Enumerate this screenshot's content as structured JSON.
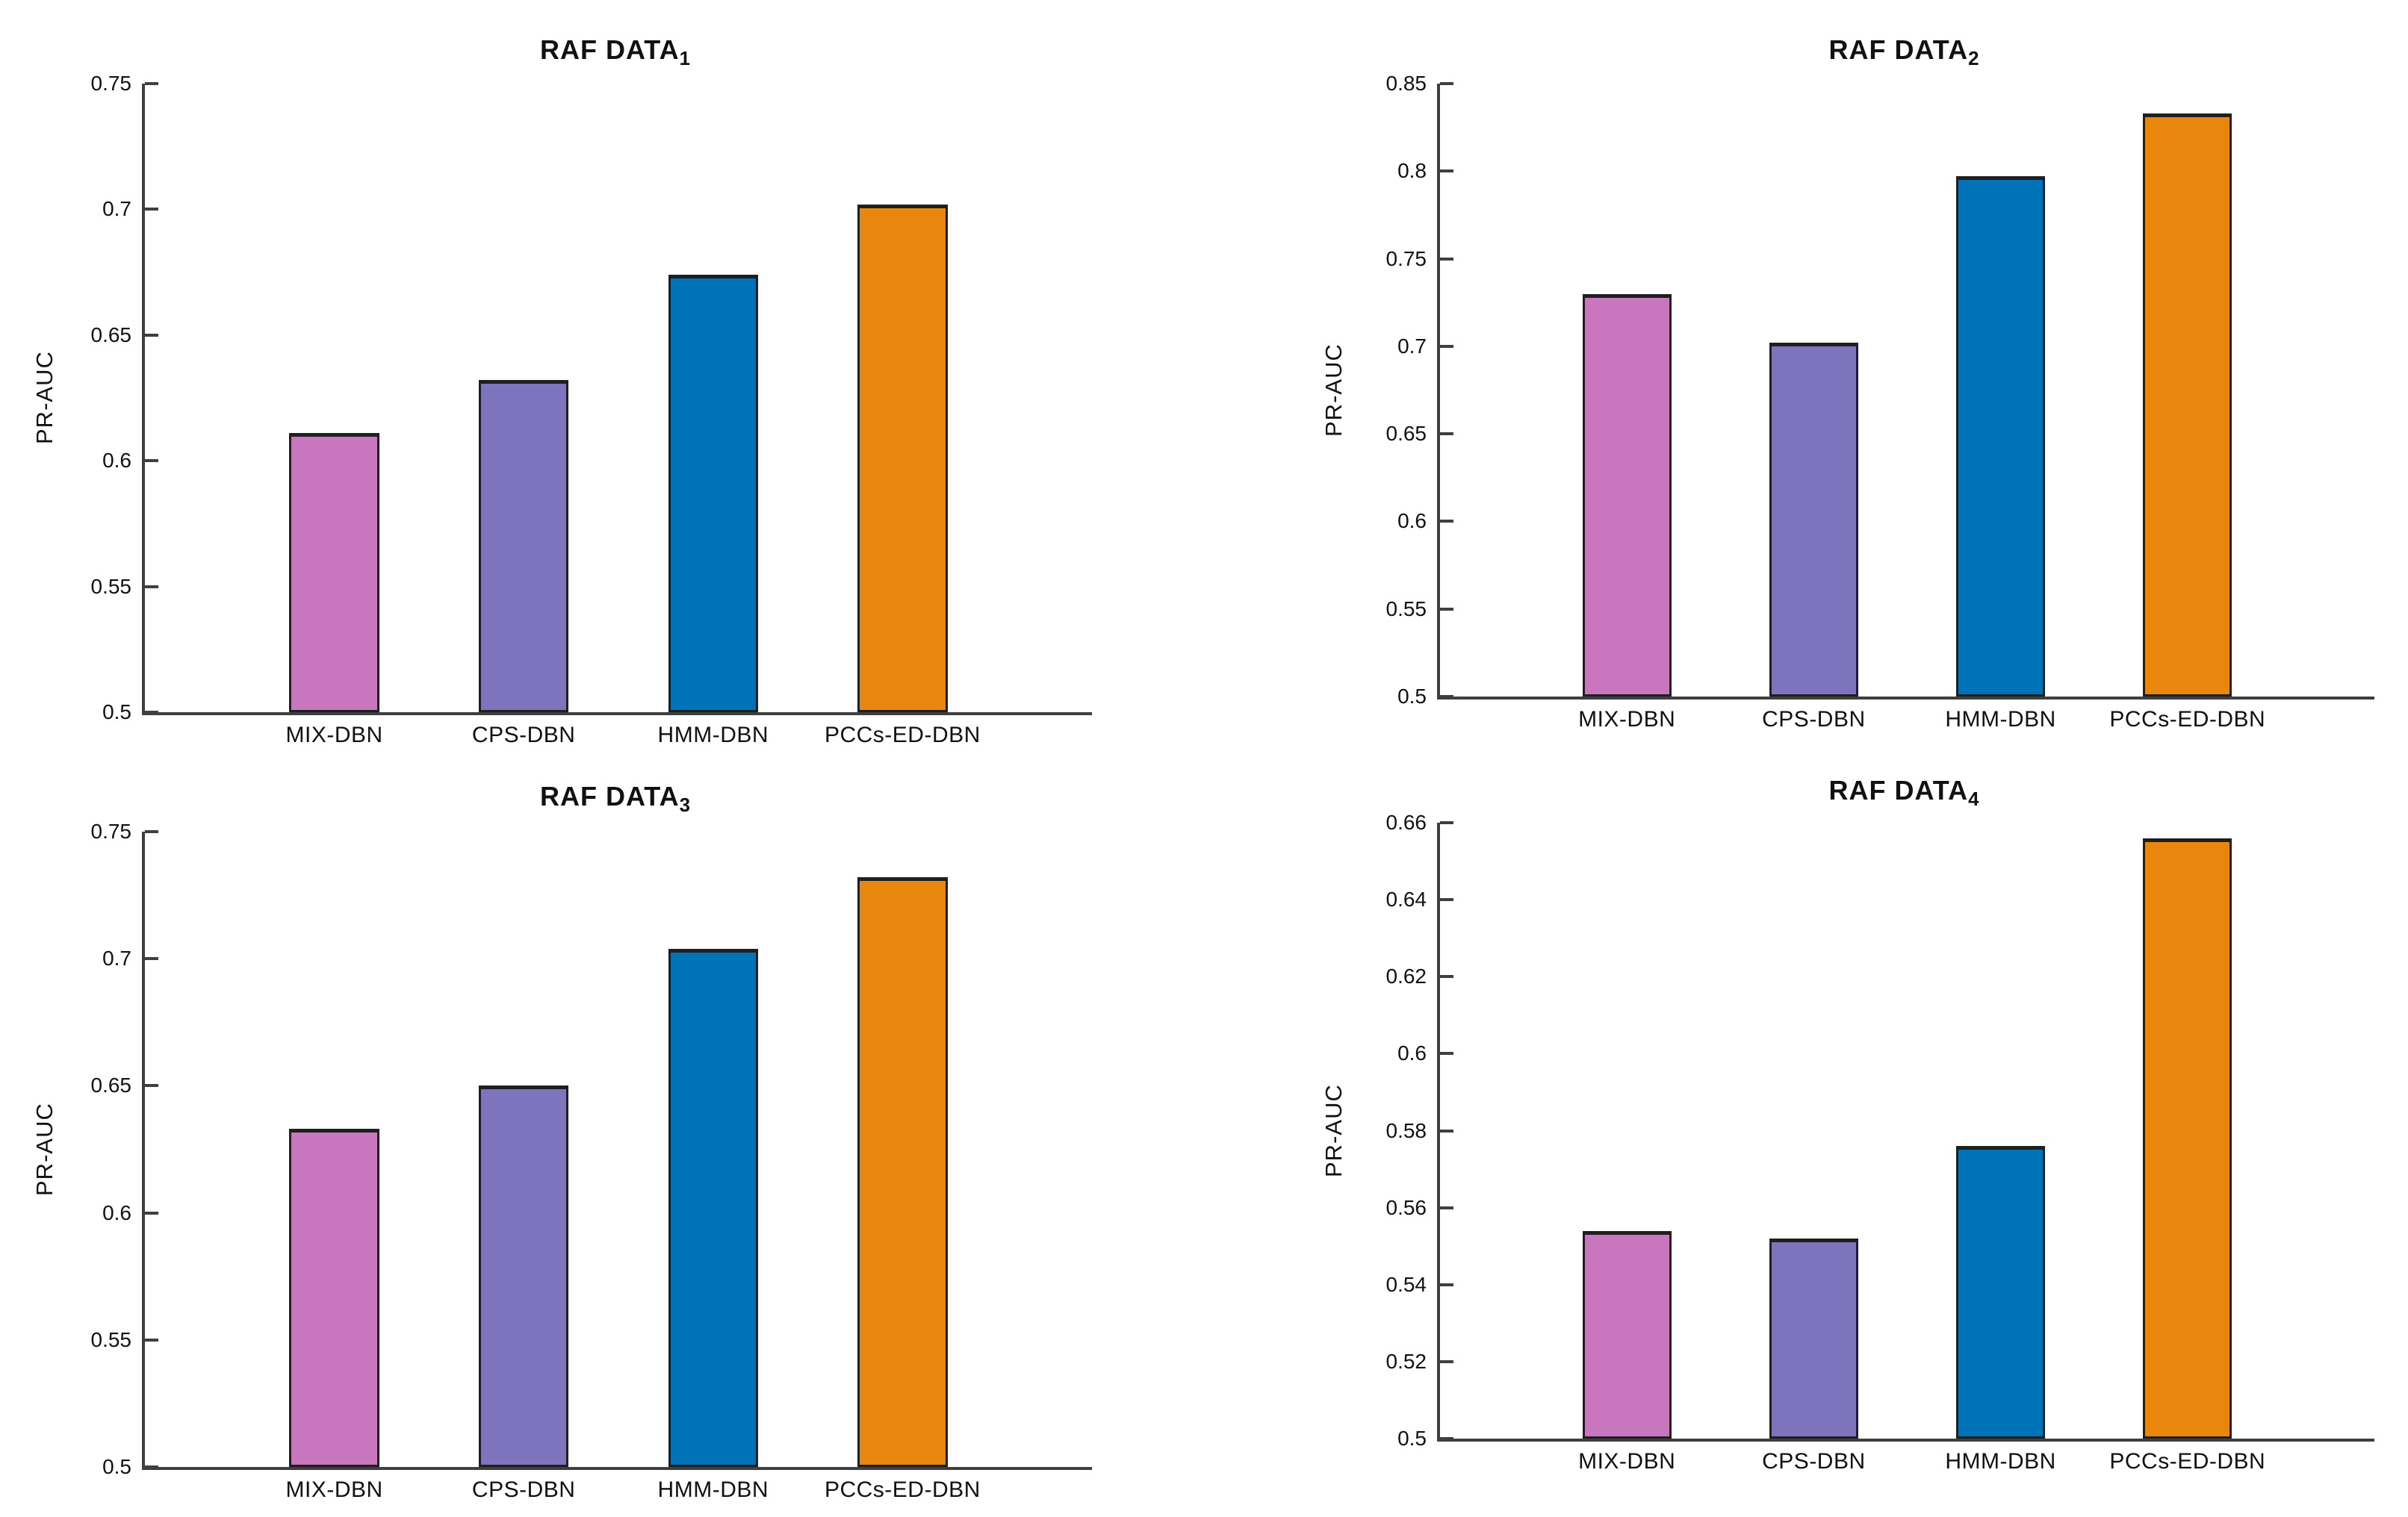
{
  "figure": {
    "background": "#ffffff",
    "axis_color": "#3f3f3f",
    "text_color": "#111111"
  },
  "chart_data": [
    {
      "type": "bar",
      "title": "RAF DATA",
      "title_sub": "1",
      "ylabel": "PR-AUC",
      "xlabel": "",
      "categories": [
        "MIX-DBN",
        "CPS-DBN",
        "HMM-DBN",
        "PCCs-ED-DBN"
      ],
      "values": [
        0.611,
        0.632,
        0.674,
        0.702
      ],
      "bar_colors": [
        "#c877be",
        "#7e74bd",
        "#0072b8",
        "#e8860e"
      ],
      "ylim": [
        0.5,
        0.75
      ],
      "yticks": [
        "0.5",
        "0.55",
        "0.6",
        "0.65",
        "0.7",
        "0.75"
      ],
      "grid": false,
      "legend_position": "none"
    },
    {
      "type": "bar",
      "title": "RAF DATA",
      "title_sub": "2",
      "ylabel": "PR-AUC",
      "xlabel": "",
      "categories": [
        "MIX-DBN",
        "CPS-DBN",
        "HMM-DBN",
        "PCCs-ED-DBN"
      ],
      "values": [
        0.73,
        0.702,
        0.797,
        0.833
      ],
      "bar_colors": [
        "#c877be",
        "#7e74bd",
        "#0072b8",
        "#e8860e"
      ],
      "ylim": [
        0.5,
        0.85
      ],
      "yticks": [
        "0.5",
        "0.55",
        "0.6",
        "0.65",
        "0.7",
        "0.75",
        "0.8",
        "0.85"
      ],
      "grid": false,
      "legend_position": "none"
    },
    {
      "type": "bar",
      "title": "RAF DATA",
      "title_sub": "3",
      "ylabel": "PR-AUC",
      "xlabel": "",
      "categories": [
        "MIX-DBN",
        "CPS-DBN",
        "HMM-DBN",
        "PCCs-ED-DBN"
      ],
      "values": [
        0.633,
        0.65,
        0.704,
        0.732
      ],
      "bar_colors": [
        "#c877be",
        "#7e74bd",
        "#0072b8",
        "#e8860e"
      ],
      "ylim": [
        0.5,
        0.75
      ],
      "yticks": [
        "0.5",
        "0.55",
        "0.6",
        "0.65",
        "0.7",
        "0.75"
      ],
      "grid": false,
      "legend_position": "none"
    },
    {
      "type": "bar",
      "title": "RAF DATA",
      "title_sub": "4",
      "ylabel": "PR-AUC",
      "xlabel": "",
      "categories": [
        "MIX-DBN",
        "CPS-DBN",
        "HMM-DBN",
        "PCCs-ED-DBN"
      ],
      "values": [
        0.554,
        0.552,
        0.576,
        0.656
      ],
      "bar_colors": [
        "#c877be",
        "#7e74bd",
        "#0072b8",
        "#e8860e"
      ],
      "ylim": [
        0.5,
        0.66
      ],
      "yticks": [
        "0.5",
        "0.52",
        "0.54",
        "0.56",
        "0.58",
        "0.6",
        "0.62",
        "0.64",
        "0.66"
      ],
      "grid": false,
      "legend_position": "none"
    }
  ]
}
